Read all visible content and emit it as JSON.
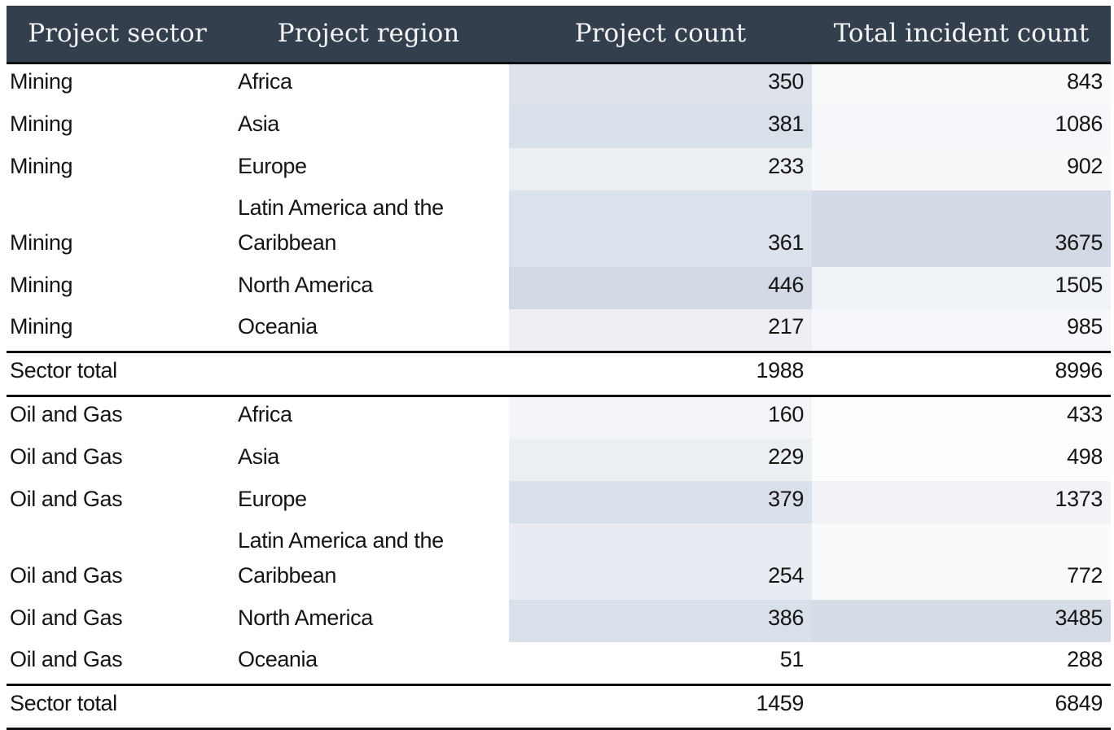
{
  "colors": {
    "header_bg": "#333f4d",
    "header_text": "#f4f5f6",
    "body_text": "#151515",
    "border": "#0d0f12",
    "shade_min": "#ffffff",
    "shade_max": "#d3dae5"
  },
  "chart_data": {
    "type": "table",
    "columns": [
      "Project sector",
      "Project region",
      "Project count",
      "Total incident count"
    ],
    "shading_note": "Project count and Total incident count cells are shaded on a white-to-blue-gray ramp scaled per column between that column's min and max values",
    "sections": [
      {
        "rows": [
          [
            "Mining",
            "Africa",
            350,
            843
          ],
          [
            "Mining",
            "Asia",
            381,
            1086
          ],
          [
            "Mining",
            "Europe",
            233,
            902
          ],
          [
            "Mining",
            "Latin America and the Caribbean",
            361,
            3675
          ],
          [
            "Mining",
            "North America",
            446,
            1505
          ],
          [
            "Mining",
            "Oceania",
            217,
            985
          ]
        ],
        "total_label": "Sector total",
        "total_project_count": 1988,
        "total_incident_count": 8996
      },
      {
        "rows": [
          [
            "Oil and Gas",
            "Africa",
            160,
            433
          ],
          [
            "Oil and Gas",
            "Asia",
            229,
            498
          ],
          [
            "Oil and Gas",
            "Europe",
            379,
            1373
          ],
          [
            "Oil and Gas",
            "Latin America and the Caribbean",
            254,
            772
          ],
          [
            "Oil and Gas",
            "North America",
            386,
            3485
          ],
          [
            "Oil and Gas",
            "Oceania",
            51,
            288
          ]
        ],
        "total_label": "Sector total",
        "total_project_count": 1459,
        "total_incident_count": 6849
      }
    ]
  }
}
